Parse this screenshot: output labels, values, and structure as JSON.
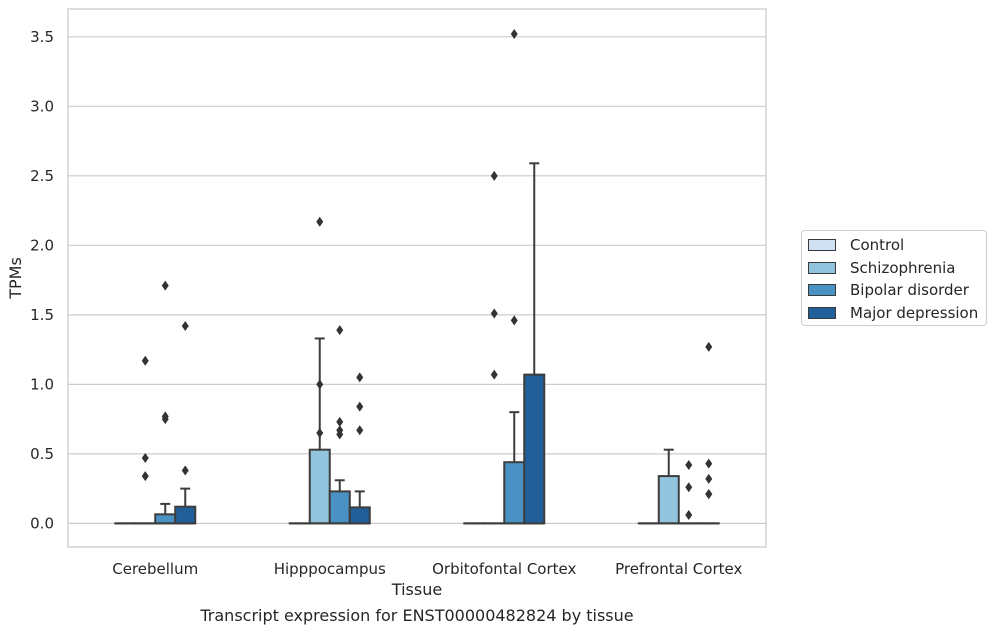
{
  "chart_data": {
    "type": "bar",
    "subtype": "box",
    "xlabel": "Tissue",
    "ylabel": "TPMs",
    "caption": "Transcript expression for ENST00000482824 by tissue",
    "ylim": [
      -0.17,
      3.7
    ],
    "yticks": [
      "0.0",
      "0.5",
      "1.0",
      "1.5",
      "2.0",
      "2.5",
      "3.0",
      "3.5"
    ],
    "ytick_values": [
      0,
      0.5,
      1.0,
      1.5,
      2.0,
      2.5,
      3.0,
      3.5
    ],
    "grid": "horizontal",
    "legend_position": "right",
    "categories": [
      "Cerebellum",
      "Hipppocampus",
      "Orbitofontal Cortex",
      "Prefrontal Cortex"
    ],
    "series": [
      {
        "name": "Control",
        "color": "#cfe1f2",
        "boxes": [
          {
            "q1": 0,
            "median": 0,
            "q3": 0,
            "whisker_low": 0,
            "whisker_high": 0,
            "outliers": []
          },
          {
            "q1": 0,
            "median": 0,
            "q3": 0,
            "whisker_low": 0,
            "whisker_high": 0,
            "outliers": []
          },
          {
            "q1": 0,
            "median": 0,
            "q3": 0,
            "whisker_low": 0,
            "whisker_high": 0,
            "outliers": []
          },
          {
            "q1": 0,
            "median": 0,
            "q3": 0,
            "whisker_low": 0,
            "whisker_high": 0,
            "outliers": []
          }
        ]
      },
      {
        "name": "Schizophrenia",
        "color": "#93c4de",
        "boxes": [
          {
            "q1": 0,
            "median": 0,
            "q3": 0,
            "whisker_low": 0,
            "whisker_high": 0,
            "outliers": [
              0.34,
              0.47,
              1.17
            ]
          },
          {
            "q1": 0,
            "median": 0,
            "q3": 0.53,
            "whisker_low": 0,
            "whisker_high": 1.33,
            "outliers": [
              0.65,
              1.0,
              2.17
            ]
          },
          {
            "q1": 0,
            "median": 0,
            "q3": 0,
            "whisker_low": 0,
            "whisker_high": 0,
            "outliers": [
              1.07,
              1.51,
              2.5
            ]
          },
          {
            "q1": 0,
            "median": 0,
            "q3": 0.34,
            "whisker_low": 0,
            "whisker_high": 0.53,
            "outliers": []
          }
        ]
      },
      {
        "name": "Bipolar disorder",
        "color": "#4a91c4",
        "boxes": [
          {
            "q1": 0,
            "median": 0,
            "q3": 0.065,
            "whisker_low": 0,
            "whisker_high": 0.14,
            "outliers": [
              0.75,
              0.77,
              1.71
            ]
          },
          {
            "q1": 0,
            "median": 0,
            "q3": 0.23,
            "whisker_low": 0,
            "whisker_high": 0.31,
            "outliers": [
              0.64,
              0.67,
              0.73,
              1.39
            ]
          },
          {
            "q1": 0,
            "median": 0,
            "q3": 0.44,
            "whisker_low": 0,
            "whisker_high": 0.8,
            "outliers": [
              1.46,
              3.52
            ]
          },
          {
            "q1": 0,
            "median": 0,
            "q3": 0,
            "whisker_low": 0,
            "whisker_high": 0,
            "outliers": [
              0.06,
              0.26,
              0.42
            ]
          }
        ]
      },
      {
        "name": "Major depression",
        "color": "#215f9b",
        "boxes": [
          {
            "q1": 0,
            "median": 0,
            "q3": 0.12,
            "whisker_low": 0,
            "whisker_high": 0.25,
            "outliers": [
              0.38,
              1.42
            ]
          },
          {
            "q1": 0,
            "median": 0,
            "q3": 0.115,
            "whisker_low": 0,
            "whisker_high": 0.23,
            "outliers": [
              0.67,
              0.84,
              1.05
            ]
          },
          {
            "q1": 0,
            "median": 0,
            "q3": 1.07,
            "whisker_low": 0,
            "whisker_high": 2.59,
            "outliers": []
          },
          {
            "q1": 0,
            "median": 0,
            "q3": 0,
            "whisker_low": 0,
            "whisker_high": 0,
            "outliers": [
              0.21,
              0.32,
              1.27,
              0.21,
              0.43
            ]
          }
        ]
      }
    ]
  }
}
